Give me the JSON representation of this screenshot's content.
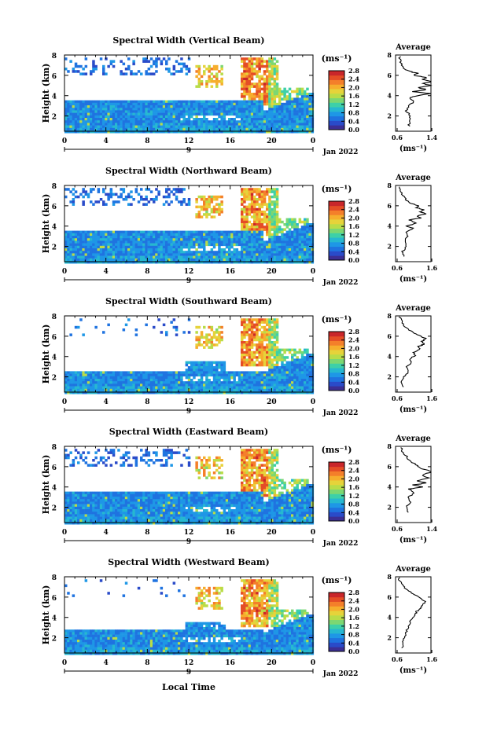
{
  "panels": [
    {
      "title": "Spectral Width (Vertical Beam)",
      "date": "Jan 2022",
      "avg_title": "Average",
      "avg_ticks": [
        "0.6",
        "1.4"
      ],
      "avg_profile": [
        [
          0.9,
          1.0
        ],
        [
          0.9,
          1.5
        ],
        [
          0.95,
          2.0
        ],
        [
          0.85,
          2.5
        ],
        [
          0.9,
          3.0
        ],
        [
          1.0,
          3.4
        ],
        [
          0.9,
          3.8
        ],
        [
          1.1,
          4.0
        ],
        [
          1.4,
          4.2
        ],
        [
          1.0,
          4.4
        ],
        [
          1.3,
          4.6
        ],
        [
          1.1,
          4.8
        ],
        [
          1.4,
          5.0
        ],
        [
          1.2,
          5.2
        ],
        [
          1.45,
          5.4
        ],
        [
          1.2,
          5.6
        ],
        [
          1.3,
          5.8
        ],
        [
          1.0,
          6.0
        ],
        [
          1.1,
          6.2
        ],
        [
          0.9,
          6.4
        ],
        [
          0.8,
          6.6
        ],
        [
          0.75,
          7.0
        ],
        [
          0.7,
          7.4
        ],
        [
          0.7,
          8.0
        ]
      ]
    },
    {
      "title": "Spectral Width (Northward Beam)",
      "date": "Jan 2022",
      "avg_title": "Average",
      "avg_ticks": [
        "0.6",
        "1.6"
      ],
      "avg_profile": [
        [
          0.85,
          1.0
        ],
        [
          0.8,
          1.5
        ],
        [
          0.9,
          2.0
        ],
        [
          0.85,
          2.5
        ],
        [
          0.95,
          3.0
        ],
        [
          0.9,
          3.4
        ],
        [
          1.1,
          3.8
        ],
        [
          0.9,
          4.0
        ],
        [
          1.2,
          4.3
        ],
        [
          1.0,
          4.6
        ],
        [
          1.3,
          4.8
        ],
        [
          1.2,
          5.0
        ],
        [
          1.45,
          5.2
        ],
        [
          1.3,
          5.4
        ],
        [
          1.4,
          5.6
        ],
        [
          1.2,
          5.8
        ],
        [
          1.25,
          6.0
        ],
        [
          1.0,
          6.3
        ],
        [
          0.9,
          6.6
        ],
        [
          0.8,
          7.0
        ],
        [
          0.75,
          7.5
        ],
        [
          0.7,
          8.0
        ]
      ]
    },
    {
      "title": "Spectral Width (Southward Beam)",
      "date": "Jan 2022",
      "avg_title": "Average",
      "avg_ticks": [
        "0.6",
        "1.6"
      ],
      "avg_profile": [
        [
          0.8,
          1.0
        ],
        [
          0.75,
          1.5
        ],
        [
          0.85,
          2.0
        ],
        [
          0.95,
          2.5
        ],
        [
          0.9,
          3.0
        ],
        [
          1.05,
          3.4
        ],
        [
          1.0,
          3.8
        ],
        [
          1.15,
          4.1
        ],
        [
          1.1,
          4.4
        ],
        [
          1.3,
          4.7
        ],
        [
          1.25,
          5.0
        ],
        [
          1.4,
          5.2
        ],
        [
          1.35,
          5.5
        ],
        [
          1.45,
          5.8
        ],
        [
          1.3,
          6.0
        ],
        [
          1.15,
          6.3
        ],
        [
          0.95,
          6.7
        ],
        [
          0.8,
          7.2
        ],
        [
          0.75,
          7.6
        ],
        [
          0.7,
          8.0
        ]
      ]
    },
    {
      "title": "Spectral Width (Eastward Beam)",
      "date": "Jan 2022",
      "avg_title": "Average",
      "avg_ticks": [
        "0.6",
        "1.4"
      ],
      "avg_profile": [
        [
          0.9,
          1.5
        ],
        [
          0.85,
          2.0
        ],
        [
          0.95,
          2.5
        ],
        [
          0.9,
          3.0
        ],
        [
          1.0,
          3.4
        ],
        [
          0.9,
          3.8
        ],
        [
          1.2,
          4.0
        ],
        [
          1.0,
          4.2
        ],
        [
          1.3,
          4.4
        ],
        [
          1.1,
          4.6
        ],
        [
          1.35,
          4.9
        ],
        [
          1.2,
          5.2
        ],
        [
          1.45,
          5.5
        ],
        [
          1.2,
          5.8
        ],
        [
          1.1,
          6.1
        ],
        [
          0.95,
          6.5
        ],
        [
          0.85,
          7.0
        ],
        [
          0.75,
          7.5
        ],
        [
          0.7,
          8.0
        ]
      ]
    },
    {
      "title": "Spectral Width (Westward Beam)",
      "date": "Jan 2022",
      "avg_title": "Average",
      "avg_ticks": [
        "0.6",
        "1.6"
      ],
      "avg_profile": [
        [
          0.8,
          1.0
        ],
        [
          0.8,
          1.5
        ],
        [
          0.85,
          2.0
        ],
        [
          0.9,
          2.5
        ],
        [
          0.95,
          3.0
        ],
        [
          1.0,
          3.5
        ],
        [
          1.1,
          4.0
        ],
        [
          1.15,
          4.3
        ],
        [
          1.2,
          4.6
        ],
        [
          1.3,
          4.9
        ],
        [
          1.35,
          5.2
        ],
        [
          1.45,
          5.5
        ],
        [
          1.35,
          5.8
        ],
        [
          1.2,
          6.1
        ],
        [
          1.05,
          6.4
        ],
        [
          0.9,
          6.8
        ],
        [
          0.8,
          7.2
        ],
        [
          0.7,
          7.7
        ],
        [
          0.7,
          8.0
        ]
      ]
    }
  ],
  "y_axis_label": "Height (km)",
  "y_ticks": [
    "2",
    "4",
    "6",
    "8"
  ],
  "x_ticks": [
    "0",
    "4",
    "8",
    "12",
    "16",
    "20",
    "0"
  ],
  "day_label": "9",
  "x_axis_label": "Local Time",
  "colorbar": {
    "unit": "(ms⁻¹)",
    "ticks": [
      "0.0",
      "0.4",
      "0.8",
      "1.2",
      "1.6",
      "2.0",
      "2.4",
      "2.8"
    ],
    "colors": [
      "#3c2f94",
      "#2a4bc9",
      "#1f73e0",
      "#1e97e6",
      "#26b8d0",
      "#3dd0a8",
      "#7cd772",
      "#b9dc48",
      "#e6d33a",
      "#f6ae2d",
      "#f47f2a",
      "#e44d26",
      "#c9262a"
    ]
  },
  "avg_unit": "(ms⁻¹)",
  "chart_data": [
    {
      "type": "heatmap",
      "title": "Spectral Width (Vertical Beam)",
      "xlabel": "Local Time",
      "ylabel": "Height (km)",
      "xlim": [
        0,
        24
      ],
      "ylim": [
        0.5,
        8
      ],
      "zlim": [
        0.0,
        2.8
      ],
      "x_ticks": [
        0,
        4,
        8,
        12,
        16,
        20,
        24
      ],
      "y_ticks": [
        2,
        4,
        6,
        8
      ],
      "colorbar_label": "(ms⁻¹)"
    },
    {
      "type": "line",
      "title": "Average",
      "xlabel": "(ms⁻¹)",
      "ylabel": "Height (km)",
      "xlim": [
        0.6,
        1.4
      ],
      "ylim": [
        0.5,
        8
      ]
    },
    {
      "type": "heatmap",
      "title": "Spectral Width (Northward Beam)",
      "xlabel": "Local Time",
      "ylabel": "Height (km)",
      "xlim": [
        0,
        24
      ],
      "ylim": [
        0.5,
        8
      ],
      "zlim": [
        0.0,
        2.8
      ],
      "x_ticks": [
        0,
        4,
        8,
        12,
        16,
        20,
        24
      ],
      "y_ticks": [
        2,
        4,
        6,
        8
      ],
      "colorbar_label": "(ms⁻¹)"
    },
    {
      "type": "line",
      "title": "Average",
      "xlabel": "(ms⁻¹)",
      "ylabel": "Height (km)",
      "xlim": [
        0.6,
        1.6
      ],
      "ylim": [
        0.5,
        8
      ]
    },
    {
      "type": "heatmap",
      "title": "Spectral Width (Southward Beam)",
      "xlabel": "Local Time",
      "ylabel": "Height (km)",
      "xlim": [
        0,
        24
      ],
      "ylim": [
        0.5,
        8
      ],
      "zlim": [
        0.0,
        2.8
      ],
      "x_ticks": [
        0,
        4,
        8,
        12,
        16,
        20,
        24
      ],
      "y_ticks": [
        2,
        4,
        6,
        8
      ],
      "colorbar_label": "(ms⁻¹)"
    },
    {
      "type": "line",
      "title": "Average",
      "xlabel": "(ms⁻¹)",
      "ylabel": "Height (km)",
      "xlim": [
        0.6,
        1.6
      ],
      "ylim": [
        0.5,
        8
      ]
    },
    {
      "type": "heatmap",
      "title": "Spectral Width (Eastward Beam)",
      "xlabel": "Local Time",
      "ylabel": "Height (km)",
      "xlim": [
        0,
        24
      ],
      "ylim": [
        0.5,
        8
      ],
      "zlim": [
        0.0,
        2.8
      ],
      "x_ticks": [
        0,
        4,
        8,
        12,
        16,
        20,
        24
      ],
      "y_ticks": [
        2,
        4,
        6,
        8
      ],
      "colorbar_label": "(ms⁻¹)"
    },
    {
      "type": "line",
      "title": "Average",
      "xlabel": "(ms⁻¹)",
      "ylabel": "Height (km)",
      "xlim": [
        0.6,
        1.4
      ],
      "ylim": [
        0.5,
        8
      ]
    },
    {
      "type": "heatmap",
      "title": "Spectral Width (Westward Beam)",
      "xlabel": "Local Time",
      "ylabel": "Height (km)",
      "xlim": [
        0,
        24
      ],
      "ylim": [
        0.5,
        8
      ],
      "zlim": [
        0.0,
        2.8
      ],
      "x_ticks": [
        0,
        4,
        8,
        12,
        16,
        20,
        24
      ],
      "y_ticks": [
        2,
        4,
        6,
        8
      ],
      "colorbar_label": "(ms⁻¹)"
    },
    {
      "type": "line",
      "title": "Average",
      "xlabel": "(ms⁻¹)",
      "ylabel": "Height (km)",
      "xlim": [
        0.6,
        1.6
      ],
      "ylim": [
        0.5,
        8
      ]
    }
  ]
}
